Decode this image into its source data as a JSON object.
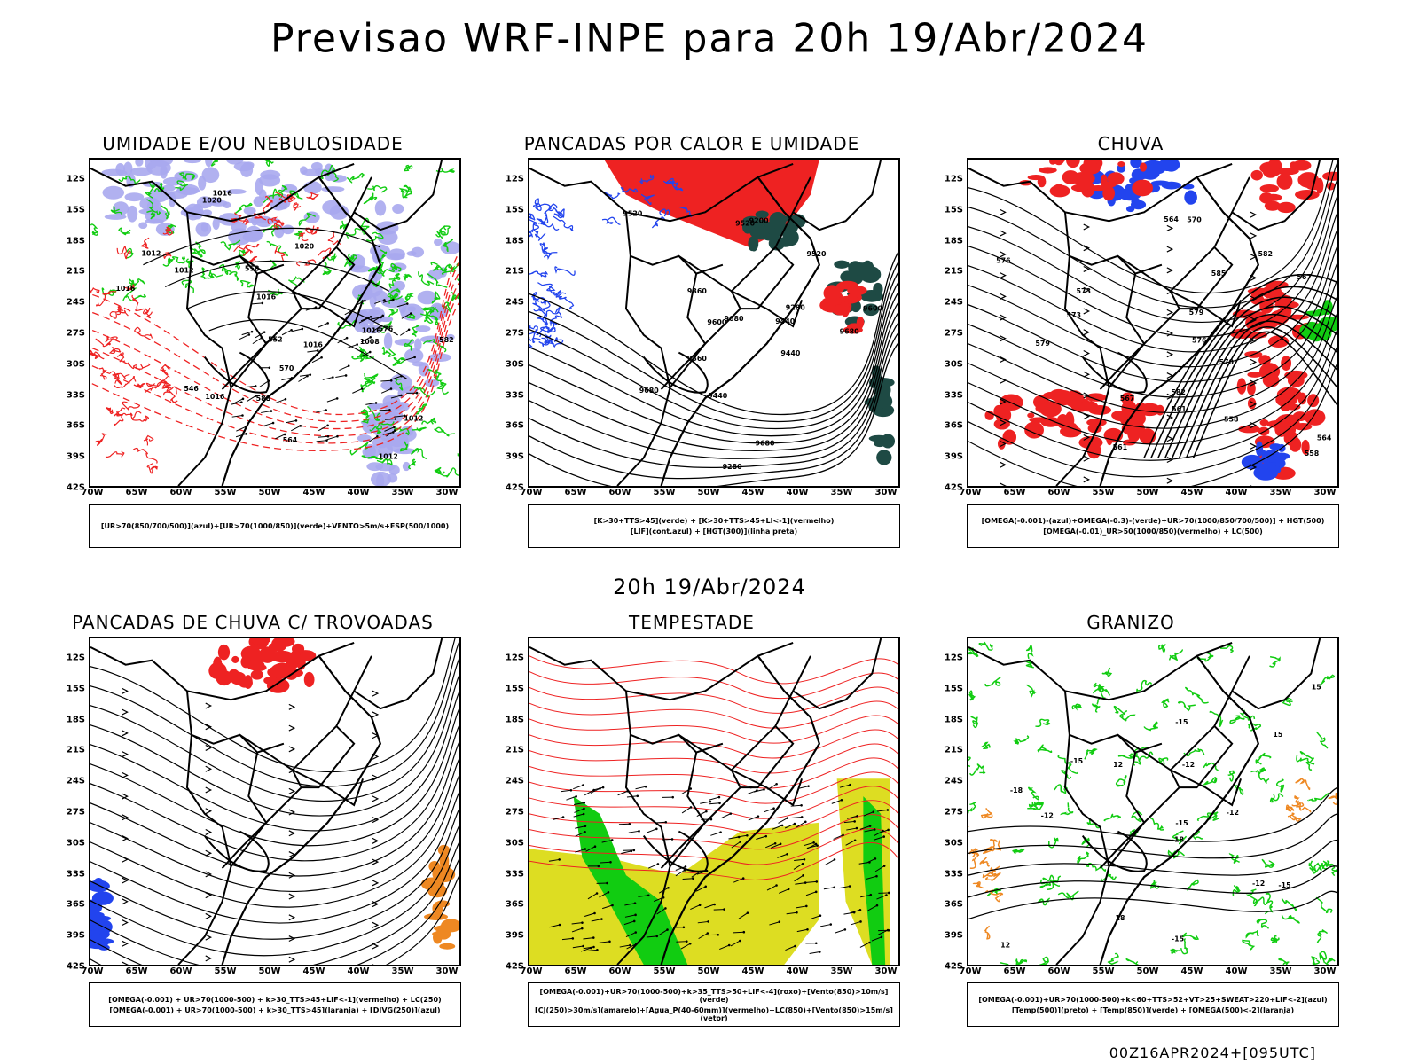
{
  "main_title": "Previsao WRF-INPE  para 20h 19/Abr/2024",
  "subtitle": "20h 19/Abr/2024",
  "footer": "00Z16APR2024+[095UTC]",
  "axes": {
    "lat_labels": [
      "12S",
      "15S",
      "18S",
      "21S",
      "24S",
      "27S",
      "30S",
      "33S",
      "36S",
      "39S",
      "42S"
    ],
    "lon_labels": [
      "70W",
      "65W",
      "60W",
      "55W",
      "50W",
      "45W",
      "40W",
      "35W",
      "30W"
    ]
  },
  "panels": [
    {
      "id": "umidade",
      "title": "UMIDADE E/OU NEBULOSIDADE",
      "legend": [
        "[UR>70(850/700/500)](azul)+[UR>70(1000/850)](verde)+VENTO>5m/s+ESP(500/1000)"
      ],
      "contour_labels": [
        "1012",
        "1012",
        "1016",
        "1020",
        "1016",
        "1020",
        "1016",
        "1016",
        "1012",
        "1008",
        "1016",
        "1016",
        "1012",
        "576",
        "570",
        "564",
        "558",
        "552",
        "546",
        "588",
        "582"
      ]
    },
    {
      "id": "pancadas-calor",
      "title": "PANCADAS POR CALOR E UMIDADE",
      "legend": [
        "[K>30+TTS>45](verde) + [K>30+TTS>45+LI<-1](vermelho)",
        "[LIF](cont.azul) + [HGT(300)](linha preta)"
      ],
      "contour_labels": [
        "9680",
        "9680",
        "9680",
        "9680",
        "9600",
        "9600",
        "9520",
        "9440",
        "9360",
        "9280",
        "9520",
        "9440",
        "9360",
        "9280",
        "9200",
        "9520",
        "9440"
      ]
    },
    {
      "id": "chuva",
      "title": "CHUVA",
      "legend": [
        "[OMEGA(-0.001)-(azul)+OMEGA(-0.3)-(verde)+UR>70(1000/850/700/500)] + HGT(500)",
        "[OMEGA(-0.01)_UR>50(1000/850)(vermelho) + LC(500)"
      ],
      "contour_labels": [
        "582",
        "579",
        "576",
        "573",
        "570",
        "567",
        "564",
        "561",
        "558",
        "585",
        "582",
        "579",
        "576",
        "573",
        "570",
        "567",
        "564",
        "561",
        "558"
      ]
    },
    {
      "id": "trovoadas",
      "title": "PANCADAS DE CHUVA C/ TROVOADAS",
      "legend": [
        "[OMEGA(-0.001) + UR>70(1000-500) + k>30_TTS>45+LIF<-1](vermelho) + LC(250)",
        "[OMEGA(-0.001) + UR>70(1000-500) + k>30_TTS>45](laranja) + [DIVG(250)](azul)"
      ],
      "contour_labels": []
    },
    {
      "id": "tempestade",
      "title": "TEMPESTADE",
      "legend": [
        "[OMEGA(-0.001)+UR>70(1000-500)+k>35_TTS>50+LIF<-4](roxo)+[Vento(850)>10m/s](verde)",
        "[CJ(250)>30m/s](amarelo)+[Agua_P(40-60mm)](vermelho)+LC(850)+[Vento(850)>15m/s](vetor)"
      ],
      "contour_labels": []
    },
    {
      "id": "granizo",
      "title": "GRANIZO",
      "legend": [
        "[OMEGA(-0.001)+UR>70(1000-500)+k<60+TTS>52+VT>25+SWEAT>220+LIF<-2](azul)",
        "[Temp(500)](preto) + [Temp(850)](verde) + [OMEGA(500)<-2](laranja)"
      ],
      "contour_labels": [
        "-12",
        "-12",
        "-15",
        "-15",
        "-15",
        "-12",
        "-12",
        "-18",
        "-18",
        "-15",
        "-15",
        "12",
        "15",
        "18",
        "15",
        "12"
      ]
    }
  ],
  "colors": {
    "azul": "#2244ee",
    "verde": "#11cc11",
    "vermelho": "#ee2222",
    "laranja": "#ee8822",
    "amarelo": "#dddd22",
    "lilas": "#a8a8ee",
    "verde_escuro": "#1e4a44"
  }
}
